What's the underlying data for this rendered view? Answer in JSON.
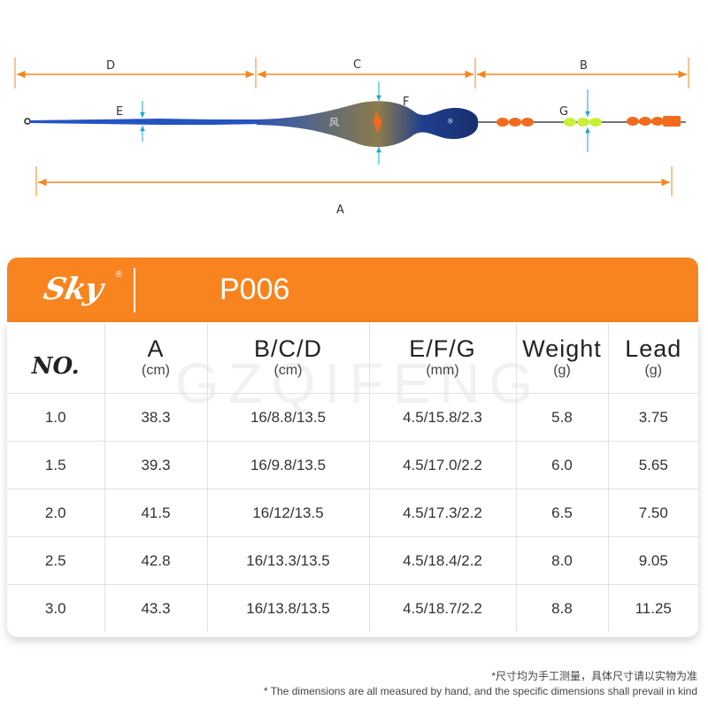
{
  "diagram": {
    "labels": {
      "a": "A",
      "b": "B",
      "c": "C",
      "d": "D",
      "e": "E",
      "f": "F",
      "g": "G"
    },
    "colors": {
      "dimension_line": "#f7841f",
      "marker": "#1aa6d9",
      "body": "#1f3f8f",
      "bead": "#f26a1b",
      "bead_green": "#c8f03a"
    }
  },
  "header": {
    "logo_text": "Sky",
    "logo_mark": "®",
    "model": "P006",
    "accent": "#f7841f"
  },
  "table": {
    "watermark": "GZQIFENG",
    "headers": {
      "no": "NO.",
      "a": {
        "label": "A",
        "unit": "(cm)"
      },
      "bcd": {
        "label": "B/C/D",
        "unit": "(cm)"
      },
      "efg": {
        "label": "E/F/G",
        "unit": "(mm)"
      },
      "weight": {
        "label": "Weight",
        "unit": "(g)"
      },
      "lead": {
        "label": "Lead",
        "unit": "(g)"
      }
    },
    "rows": [
      {
        "no": "1.0",
        "a": "38.3",
        "bcd": "16/8.8/13.5",
        "efg": "4.5/15.8/2.3",
        "weight": "5.8",
        "lead": "3.75"
      },
      {
        "no": "1.5",
        "a": "39.3",
        "bcd": "16/9.8/13.5",
        "efg": "4.5/17.0/2.2",
        "weight": "6.0",
        "lead": "5.65"
      },
      {
        "no": "2.0",
        "a": "41.5",
        "bcd": "16/12/13.5",
        "efg": "4.5/17.3/2.2",
        "weight": "6.5",
        "lead": "7.50"
      },
      {
        "no": "2.5",
        "a": "42.8",
        "bcd": "16/13.3/13.5",
        "efg": "4.5/18.4/2.2",
        "weight": "8.0",
        "lead": "9.05"
      },
      {
        "no": "3.0",
        "a": "43.3",
        "bcd": "16/13.8/13.5",
        "efg": "4.5/18.7/2.2",
        "weight": "8.8",
        "lead": "11.25"
      }
    ]
  },
  "footnotes": {
    "cn": "*尺寸均为手工测量，具体尺寸请以实物为准",
    "en": "* The dimensions are all measured by hand, and the specific dimensions shall prevail in kind"
  }
}
